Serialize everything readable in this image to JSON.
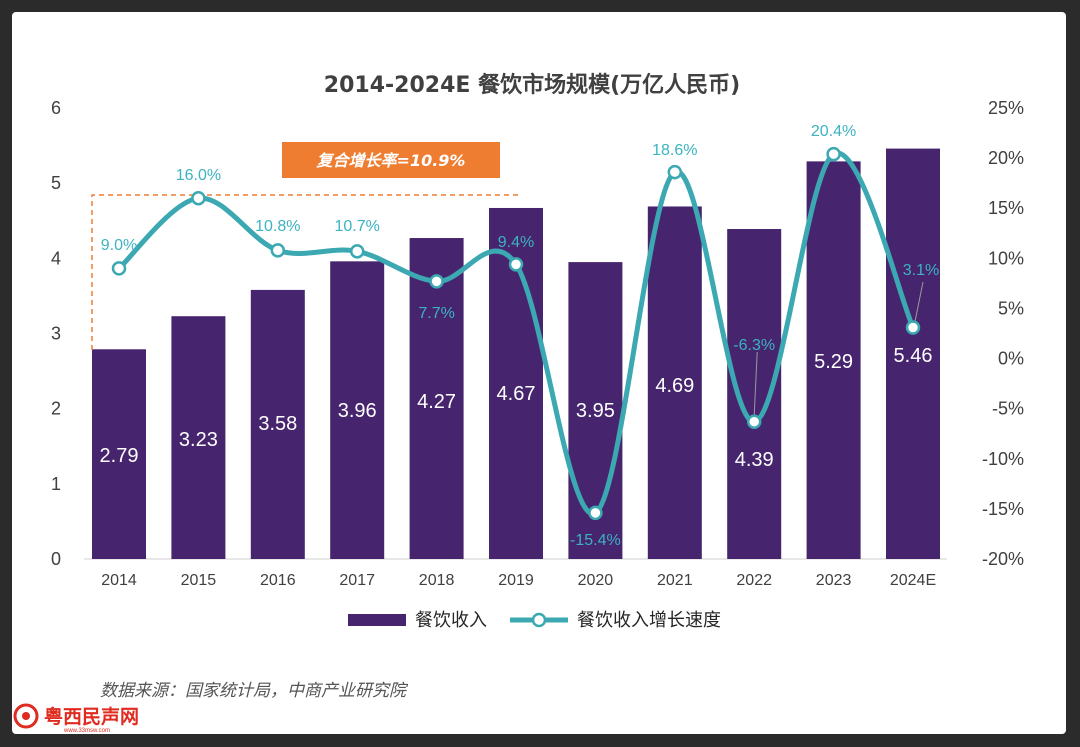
{
  "chart_data": {
    "type": "bar+line",
    "title": "2014-2024E 餐饮市场规模(万亿人民币)",
    "categories": [
      "2014",
      "2015",
      "2016",
      "2017",
      "2018",
      "2019",
      "2020",
      "2021",
      "2022",
      "2023",
      "2024E"
    ],
    "series": [
      {
        "name": "餐饮收入",
        "type": "bar",
        "axis": "left",
        "color": "#46256e",
        "values": [
          2.79,
          3.23,
          3.58,
          3.96,
          4.27,
          4.67,
          3.95,
          4.69,
          4.39,
          5.29,
          5.46
        ],
        "labels": [
          "2.79",
          "3.23",
          "3.58",
          "3.96",
          "4.27",
          "4.67",
          "3.95",
          "4.69",
          "4.39",
          "5.29",
          "5.46"
        ]
      },
      {
        "name": "餐饮收入增长速度",
        "type": "line",
        "axis": "right",
        "color": "#3ba8b2",
        "values": [
          9.0,
          16.0,
          10.8,
          10.7,
          7.7,
          9.4,
          -15.4,
          18.6,
          -6.3,
          20.4,
          3.1
        ],
        "labels": [
          "9.0%",
          "16.0%",
          "10.8%",
          "10.7%",
          "7.7%",
          "9.4%",
          "-15.4%",
          "18.6%",
          "-6.3%",
          "20.4%",
          "3.1%"
        ]
      }
    ],
    "left_axis": {
      "ylim": [
        0,
        6
      ],
      "ticks": [
        "0",
        "1",
        "2",
        "3",
        "4",
        "5",
        "6"
      ]
    },
    "right_axis": {
      "ylim": [
        -20,
        25
      ],
      "ticks": [
        "-20%",
        "-15%",
        "-10%",
        "-5%",
        "0%",
        "5%",
        "10%",
        "15%",
        "20%",
        "25%"
      ]
    },
    "cagr_label": "复合增长率=10.9%",
    "legend_position": "bottom"
  },
  "source_note": "数据来源：国家统计局，中商产业研究院",
  "watermark": {
    "text": "粤西民声网",
    "url": "www.33msw.com"
  },
  "colors": {
    "bar": "#46256e",
    "line": "#3ba8b2",
    "cagr_box": "#ee7d31"
  }
}
